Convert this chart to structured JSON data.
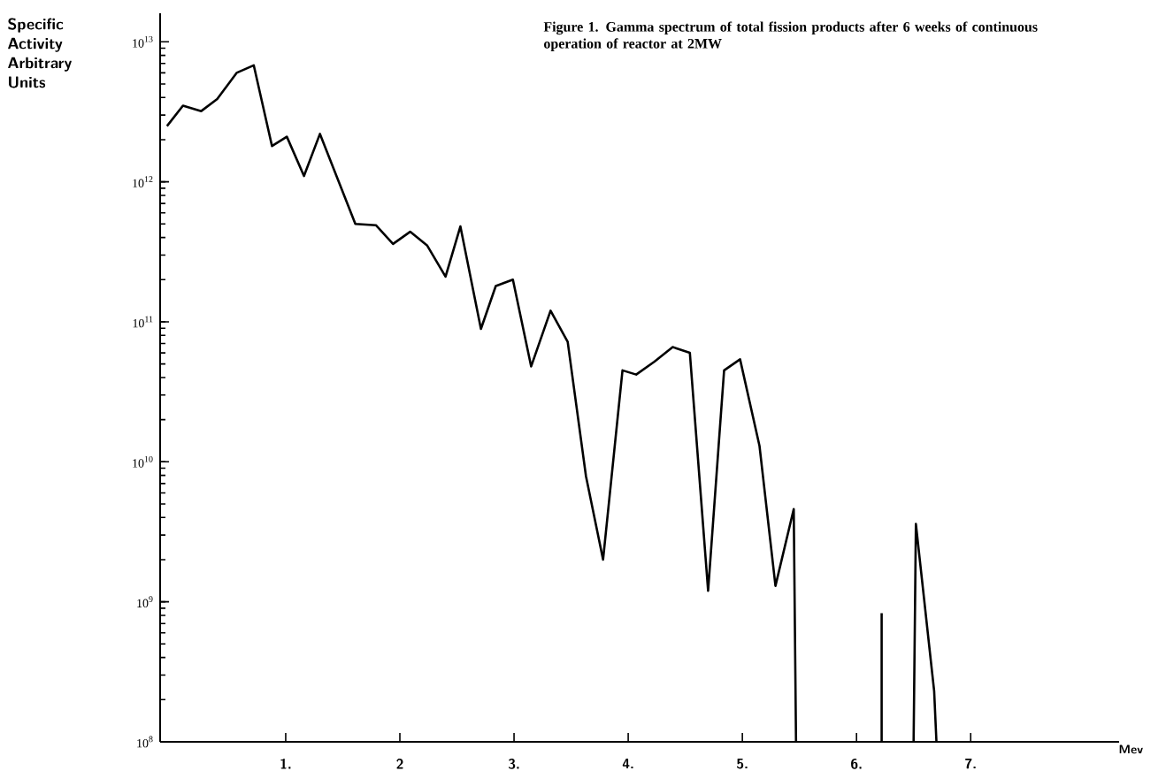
{
  "chart_data": {
    "type": "line",
    "title": "Figure 1.  Gamma spectrum of total fission products after 6 weeks of continuous operation of reactor at 2MW",
    "ylabel": "Specific Activity Arbitrary Units",
    "xlabel": "Mev",
    "x": [
      -0.04,
      0.1,
      0.26,
      0.4,
      0.57,
      0.72,
      0.88,
      1.01,
      1.16,
      1.3,
      1.61,
      1.79,
      1.94,
      2.09,
      2.24,
      2.4,
      2.53,
      2.71,
      2.84,
      2.99,
      3.15,
      3.32,
      3.47,
      3.63,
      3.78,
      3.95,
      4.07,
      4.23,
      4.39,
      4.54,
      4.7,
      4.84,
      4.98,
      5.15,
      5.29,
      5.45,
      5.47,
      5.8,
      6.22,
      6.22,
      6.4,
      6.5,
      6.52,
      6.68,
      6.7
    ],
    "series": [
      {
        "color": "#000000",
        "values": [
          2500000000000.0,
          3500000000000.0,
          3200000000000.0,
          3900000000000.0,
          6000000000000.0,
          6800000000000.0,
          1800000000000.0,
          2100000000000.0,
          1100000000000.0,
          2200000000000.0,
          500000000000.0,
          490000000000.0,
          360000000000.0,
          440000000000.0,
          350000000000.0,
          210000000000.0,
          480000000000.0,
          89000000000.0,
          180000000000.0,
          200000000000.0,
          48000000000.0,
          120000000000.0,
          72000000000.0,
          7900000000.0,
          2000000000.0,
          45000000000.0,
          42000000000.0,
          52000000000.0,
          66000000000.0,
          60000000000.0,
          1200000000.0,
          45000000000.0,
          54000000000.0,
          13000000000.0,
          1300000000.0,
          4600000000.0,
          100000000.0,
          null,
          100000000.0,
          830000000.0,
          null,
          100000000.0,
          3600000000.0,
          230000000.0,
          100000000.0
        ]
      }
    ],
    "log": "y",
    "line_style": "solid",
    "xlim": [
      -0.1,
      8.3
    ],
    "ylim": [
      100000000.0,
      16000000000000.0
    ],
    "xticks": [
      {
        "value": 1,
        "label": "1."
      },
      {
        "value": 2,
        "label": "2"
      },
      {
        "value": 3,
        "label": "3."
      },
      {
        "value": 4,
        "label": "4."
      },
      {
        "value": 5,
        "label": "5."
      },
      {
        "value": 6,
        "label": "6."
      },
      {
        "value": 7,
        "label": "7."
      }
    ],
    "yticks": [
      {
        "value": 100000000.0,
        "label": "10$^{8}$"
      },
      {
        "value": 1000000000.0,
        "label": "10$^{9}$"
      },
      {
        "value": 10000000000.0,
        "label": "10$^{10}$"
      },
      {
        "value": 100000000000.0,
        "label": "10$^{11}$"
      },
      {
        "value": 1000000000000.0,
        "label": "10$^{12}$"
      },
      {
        "value": 10000000000000.0,
        "label": "10$^{13}$"
      }
    ]
  }
}
